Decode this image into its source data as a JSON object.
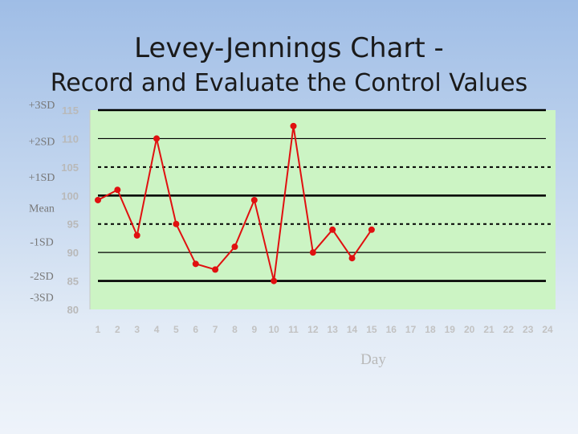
{
  "slide": {
    "title_line1": "Levey-Jennings Chart -",
    "title_line2": "Record and Evaluate the Control Values"
  },
  "colors": {
    "plot_background": "#ccf4c4",
    "data_line": "#e01010",
    "control_lines": "#000000"
  },
  "chart_data": {
    "type": "line",
    "title": "",
    "xlabel": "Day",
    "ylabel": "",
    "ylim": [
      80,
      115
    ],
    "y_ticks": [
      80,
      85,
      90,
      95,
      100,
      105,
      110,
      115
    ],
    "y_tick_labels": [
      "80",
      "85",
      "90",
      "95",
      "100",
      "105",
      "110",
      "115"
    ],
    "x_tick_labels": [
      "1",
      "2",
      "3",
      "4",
      "5",
      "6",
      "7",
      "8",
      "9",
      "10",
      "11",
      "12",
      "13",
      "14",
      "15",
      "16",
      "17",
      "18",
      "19",
      "20",
      "21",
      "22",
      "23",
      "24"
    ],
    "reference_lines": [
      {
        "label": "+3SD",
        "value": 115,
        "style": "solid"
      },
      {
        "label": "+2SD",
        "value": 110,
        "style": "solid-thin"
      },
      {
        "label": "+1SD",
        "value": 105,
        "style": "dotted"
      },
      {
        "label": "Mean",
        "value": 100,
        "style": "solid"
      },
      {
        "label": "-1SD",
        "value": 95,
        "style": "dotted"
      },
      {
        "label": "-2SD",
        "value": 90,
        "style": "solid-thin"
      },
      {
        "label": "-3SD",
        "value": 85,
        "style": "solid"
      }
    ],
    "series": [
      {
        "x": [
          1,
          2,
          3,
          4,
          5,
          6,
          7,
          8,
          9,
          10,
          11,
          12,
          13,
          14,
          15
        ],
        "values": [
          99.2,
          101,
          93,
          110,
          95,
          88,
          87,
          91,
          99.2,
          85,
          112.2,
          90,
          94,
          89,
          94
        ]
      }
    ],
    "grid": false,
    "legend": "none"
  }
}
